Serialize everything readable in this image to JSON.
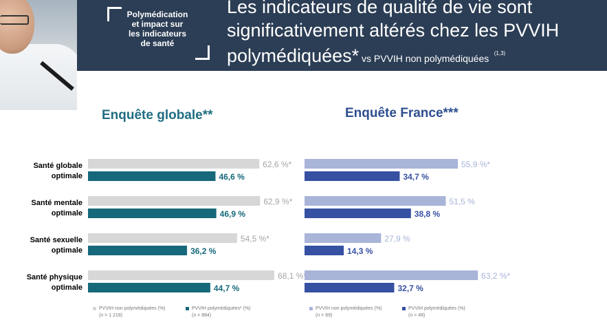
{
  "header": {
    "badge": "Polymédication\net impact sur\nles indicateurs\nde santé",
    "title_line1": "Les indicateurs de qualité de vie sont",
    "title_line2": "significativement altérés chez les PVVIH",
    "title_line3": "polymédiquées*",
    "title_sub": " vs PVVIH non polymédiquées",
    "title_refs": "(1,3)",
    "background_color": "#2c3e55"
  },
  "chart_data": [
    {
      "type": "bar",
      "orientation": "horizontal",
      "title": "Enquête globale**",
      "title_color": "#1f6d82",
      "categories": [
        "Santé globale\noptimale",
        "Santé mentale\noptimale",
        "Santé sexuelle\noptimale",
        "Santé physique\noptimale"
      ],
      "xlim": [
        0,
        100
      ],
      "series": [
        {
          "name": "PVVIH non polymédiquées (%)",
          "n_label": "(n = 1 218)",
          "values": [
            62.6,
            62.9,
            54.5,
            68.1
          ],
          "labels": [
            "62,6 %*",
            "62,9 %*",
            "54,5 %*",
            "68,1 %*"
          ],
          "color": "#d7d7d7",
          "label_color": "#a5a5a5"
        },
        {
          "name": "PVVIH polymédiquées* (%)",
          "n_label": "(n = 884)",
          "values": [
            46.6,
            46.9,
            36.2,
            44.7
          ],
          "labels": [
            "46,6 %",
            "46,9 %",
            "36,2 %",
            "44,7 %"
          ],
          "color": "#16697a",
          "label_color": "#16697a"
        }
      ]
    },
    {
      "type": "bar",
      "orientation": "horizontal",
      "title": "Enquête France***",
      "title_color": "#2e4e8f",
      "categories": [
        "Santé globale\noptimale",
        "Santé mentale\noptimale",
        "Santé sexuelle\noptimale",
        "Santé physique\noptimale"
      ],
      "xlim": [
        0,
        100
      ],
      "series": [
        {
          "name": "PVVIH non polymédiquées (%)",
          "n_label": "(n = 69)",
          "values": [
            55.9,
            51.5,
            27.9,
            63.2
          ],
          "labels": [
            "55,9 %*",
            "51,5 %",
            "27,9 %",
            "63,2 %*"
          ],
          "color": "#a8b4d8",
          "label_color": "#a8b4d8"
        },
        {
          "name": "PVVIH polymédiquées (%)",
          "n_label": "(n = 48)",
          "values": [
            34.7,
            38.8,
            14.3,
            32.7
          ],
          "labels": [
            "34,7 %",
            "38,8 %",
            "14,3 %",
            "32,7 %"
          ],
          "color": "#3650a2",
          "label_color": "#3650a2"
        }
      ]
    }
  ]
}
